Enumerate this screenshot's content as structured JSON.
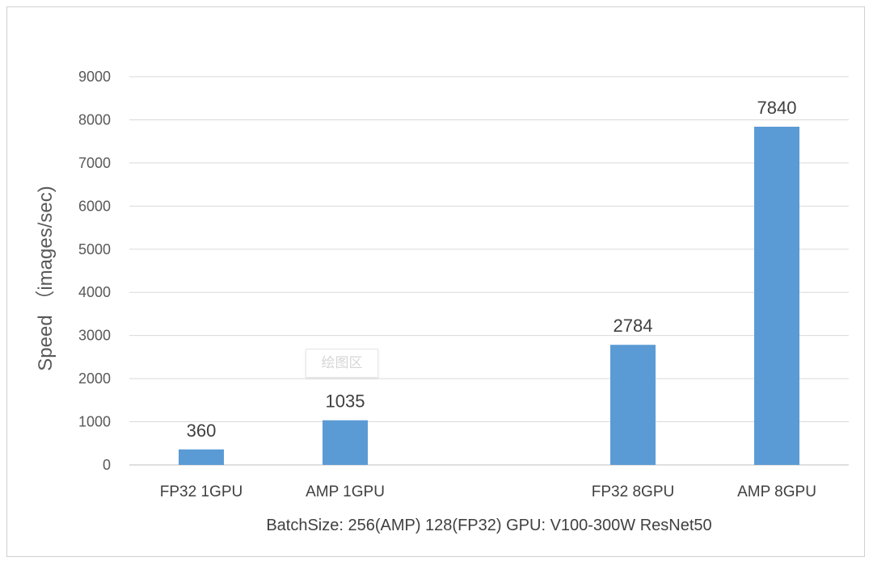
{
  "chart_data": {
    "type": "bar",
    "categories": [
      "FP32 1GPU",
      "AMP 1GPU",
      "FP32 8GPU",
      "AMP 8GPU"
    ],
    "series": [
      {
        "values": [
          360,
          1035,
          2784,
          7840
        ]
      }
    ],
    "data_labels": [
      "360",
      "1035",
      "2784",
      "7840"
    ],
    "ylabel": "Speed （images/sec)",
    "xlabel": "BatchSize: 256(AMP) 128(FP32) GPU: V100-300W ResNet50",
    "ylim": [
      0,
      9000
    ],
    "yticks": [
      0,
      1000,
      2000,
      3000,
      4000,
      5000,
      6000,
      7000,
      8000,
      9000
    ],
    "grid": true,
    "bar_color": "#5b9bd5"
  },
  "overlay": {
    "tooltip_text": "绘图区"
  }
}
